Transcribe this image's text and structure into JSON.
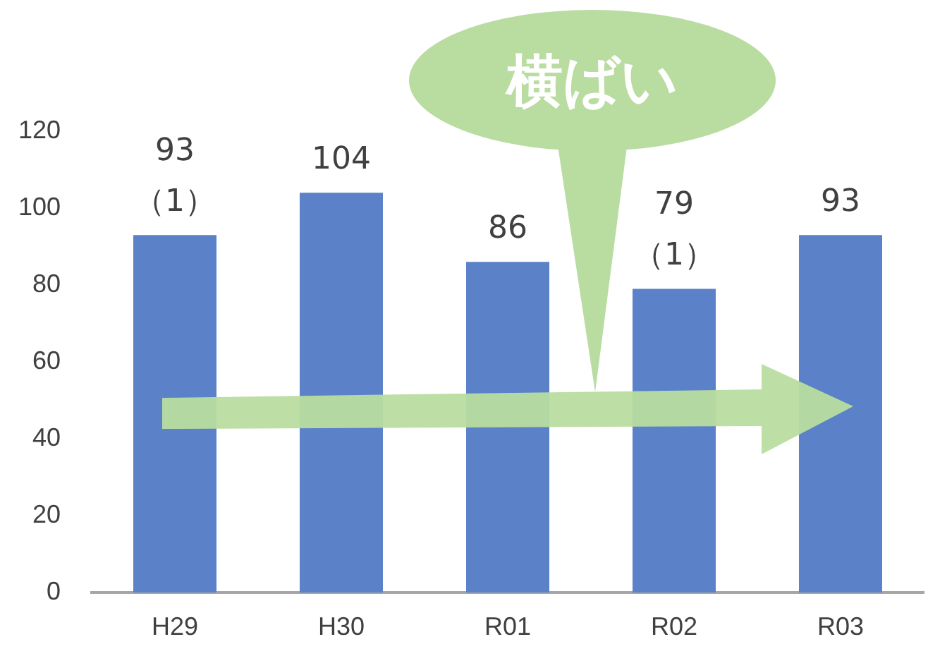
{
  "chart_data": {
    "type": "bar",
    "categories": [
      "H29",
      "H30",
      "R01",
      "R02",
      "R03"
    ],
    "values": [
      93,
      104,
      86,
      79,
      93
    ],
    "value_labels": [
      "93\n（1）",
      "104",
      "86",
      "79\n（1）",
      "93"
    ],
    "color": "#5b82c8",
    "ylim": [
      0,
      120
    ],
    "yticks": [
      0,
      20,
      40,
      60,
      80,
      100,
      120
    ],
    "grid": false,
    "legend": false,
    "annotations": [
      "横ばい"
    ]
  }
}
